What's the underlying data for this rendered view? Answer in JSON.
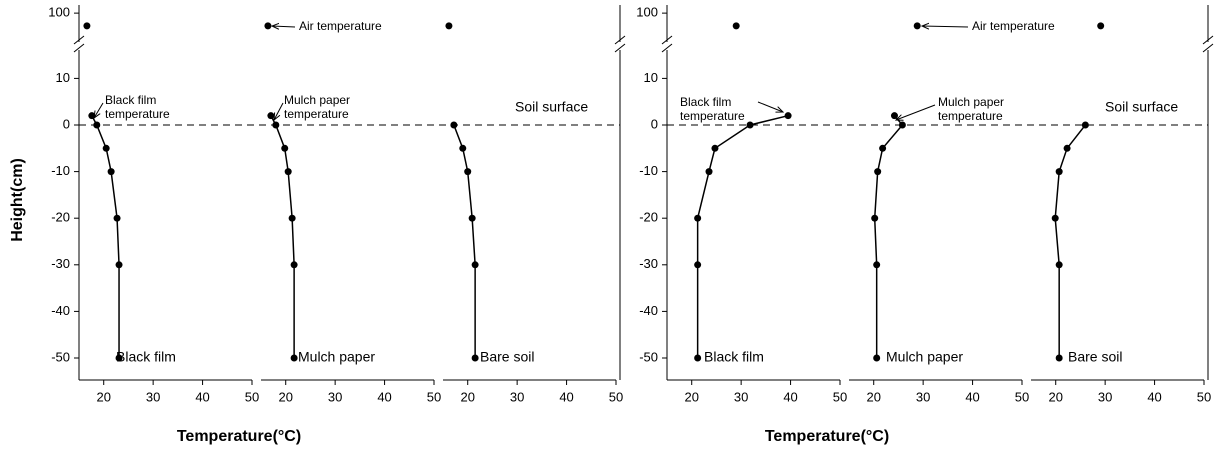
{
  "chart_data": [
    {
      "type": "line",
      "ylabel": "Height(cm)",
      "xlabel": "Temperature(°C)",
      "ylim": [
        -55,
        15
      ],
      "yticks": [
        -50,
        -40,
        -30,
        -20,
        -10,
        0,
        10
      ],
      "upper_ylim": [
        70,
        102
      ],
      "upper_yticks": [
        100
      ],
      "xlim": [
        15,
        50
      ],
      "xticks": [
        20,
        30,
        40,
        50
      ],
      "annotations": {
        "air": "Air temperature",
        "black_film": [
          "Black film",
          "temperature"
        ],
        "mulch_paper": [
          "Mulch paper",
          "temperature"
        ],
        "soil_surface": "Soil surface"
      },
      "series": [
        {
          "name": "Black film",
          "y": [
            2,
            0,
            -5,
            -10,
            -20,
            -30,
            -50
          ],
          "x": [
            17.6,
            18.6,
            20.5,
            21.5,
            22.7,
            23.1,
            23.1
          ],
          "air": {
            "x": 16.6,
            "y": 88
          }
        },
        {
          "name": "Mulch paper",
          "y": [
            2,
            0,
            -5,
            -10,
            -20,
            -30,
            -50
          ],
          "x": [
            17,
            18,
            19.8,
            20.5,
            21.3,
            21.7,
            21.7
          ],
          "air": {
            "x": 16.4,
            "y": 88
          }
        },
        {
          "name": "Bare soil",
          "y": [
            0,
            -5,
            -10,
            -20,
            -30,
            -50
          ],
          "x": [
            17.2,
            19,
            20,
            20.9,
            21.5,
            21.5
          ],
          "air": {
            "x": 16.2,
            "y": 88
          }
        }
      ]
    },
    {
      "type": "line",
      "xlabel": "Temperature(°C)",
      "ylim": [
        -55,
        15
      ],
      "yticks": [
        -50,
        -40,
        -30,
        -20,
        -10,
        0,
        10
      ],
      "upper_ylim": [
        70,
        102
      ],
      "upper_yticks": [
        100
      ],
      "xlim": [
        15,
        50
      ],
      "xticks": [
        20,
        30,
        40,
        50
      ],
      "annotations": {
        "air": "Air temperature",
        "black_film": [
          "Black film",
          "temperature"
        ],
        "mulch_paper": [
          "Mulch paper",
          "temperature"
        ],
        "soil_surface": "Soil surface"
      },
      "series": [
        {
          "name": "Black film",
          "y": [
            2,
            0,
            -5,
            -10,
            -20,
            -30,
            -50
          ],
          "x": [
            39.5,
            31.8,
            24.7,
            23.5,
            21.2,
            21.2,
            21.2
          ],
          "air": {
            "x": 29,
            "y": 88
          }
        },
        {
          "name": "Mulch paper",
          "y": [
            2,
            0,
            -5,
            -10,
            -20,
            -30,
            -50
          ],
          "x": [
            24.2,
            25.8,
            21.8,
            20.8,
            20.2,
            20.6,
            20.6
          ],
          "air": {
            "x": 28.8,
            "y": 88
          }
        },
        {
          "name": "Bare soil",
          "y": [
            0,
            -5,
            -10,
            -20,
            -30,
            -50
          ],
          "x": [
            26,
            22.3,
            20.7,
            19.9,
            20.7,
            20.7
          ],
          "air": {
            "x": 29.1,
            "y": 88
          }
        }
      ]
    }
  ]
}
